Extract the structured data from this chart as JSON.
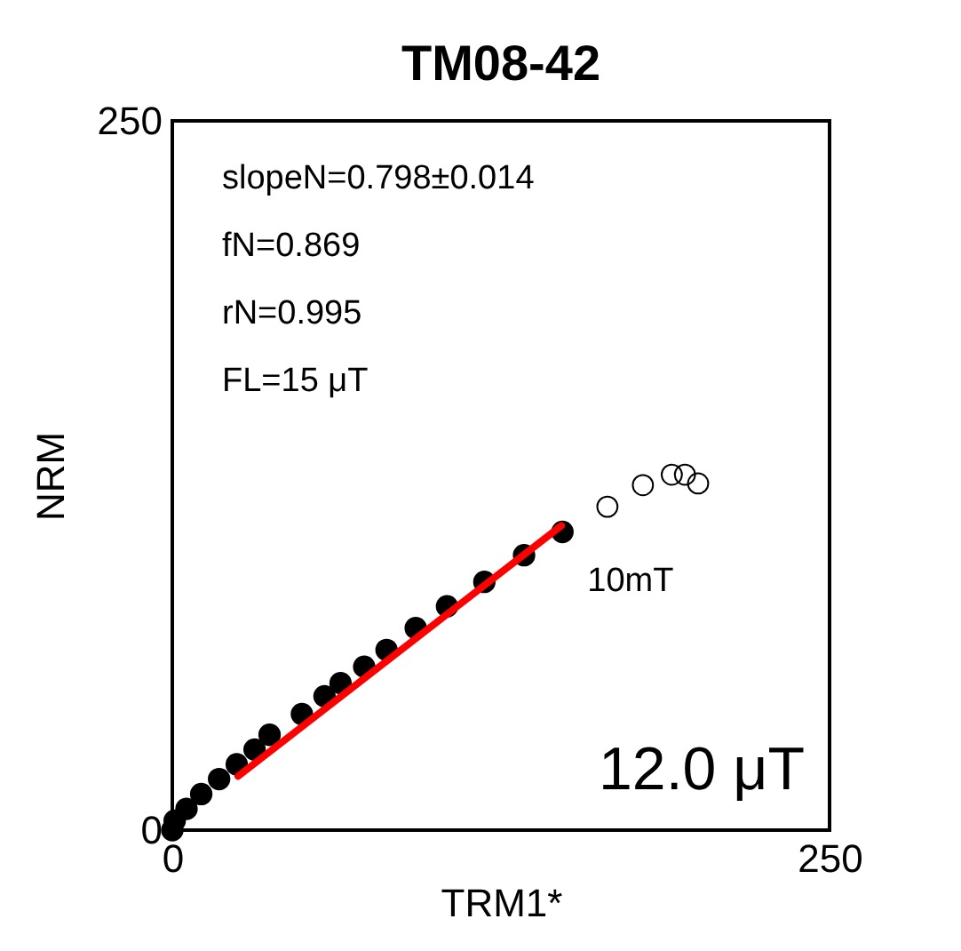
{
  "chart_data": {
    "type": "scatter",
    "title": "TM08-42",
    "xlabel": "TRM1*",
    "ylabel": "NRM",
    "xlim": [
      0,
      250
    ],
    "ylim": [
      0,
      250
    ],
    "xticks": [
      0,
      250
    ],
    "yticks": [
      0,
      250
    ],
    "series": [
      {
        "color": "#000000",
        "marker": "circle",
        "x": [
          0,
          0.9,
          5.4,
          11,
          17.8,
          24.5,
          31.3,
          37,
          49.3,
          57.9,
          64,
          73,
          81.5,
          92.6,
          104.5,
          118.7,
          133.8,
          148.4
        ],
        "values": [
          0,
          3.3,
          7.5,
          12.7,
          18,
          23.2,
          28.4,
          33.6,
          40.9,
          47.2,
          51.8,
          57.6,
          63.5,
          71.2,
          78.9,
          87.5,
          96.9,
          105.1
        ]
      },
      {
        "color": "#000000",
        "marker": "circle",
        "x": [
          165.5,
          179,
          190,
          195,
          200
        ],
        "values": [
          114,
          121.6,
          125.3,
          125.3,
          122.2
        ]
      },
      {
        "type": "line",
        "color": "#ff0000",
        "marker": "none",
        "x": [
          25,
          148
        ],
        "values": [
          19,
          107.3
        ]
      }
    ],
    "annotations": [
      "slopeN=0.798±0.014",
      "fN=0.869",
      "rN=0.995",
      "FL=15 μT",
      {
        "text": "10mT",
        "x": 148.4,
        "y": 105.1
      },
      "12.0 μT"
    ]
  }
}
